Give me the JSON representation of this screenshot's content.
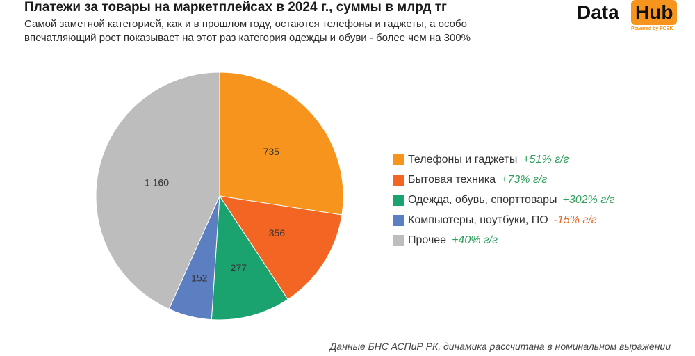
{
  "header": {
    "title": "Платежи за товары на маркетплейсах в 2024 г., суммы в млрд тг",
    "subtitle": "Самой заметной категорией, как и в прошлом году, остаются телефоны и гаджеты, а особо впечатляющий рост показывает на этот раз категория одежды и обуви - более чем на 300%"
  },
  "logo": {
    "data_text": "Data",
    "hub_text": "Hub",
    "powered_text": "Powered by FCBK"
  },
  "chart_data": {
    "type": "pie",
    "title": "Платежи за товары на маркетплейсах в 2024 г., суммы в млрд тг",
    "start": "12 o'clock, clockwise",
    "slices": [
      {
        "label": "Телефоны и гаджеты",
        "value": 735,
        "value_label": "735",
        "growth": "+51% г/г",
        "color": "#f7941d",
        "growth_color": "#2e9e5b"
      },
      {
        "label": "Бытовая техника",
        "value": 356,
        "value_label": "356",
        "growth": "+73% г/г",
        "color": "#f26522",
        "growth_color": "#2e9e5b"
      },
      {
        "label": "Одежда, обувь, спорттовары",
        "value": 277,
        "value_label": "277",
        "growth": "+302% г/г",
        "color": "#1aa36f",
        "growth_color": "#2e9e5b"
      },
      {
        "label": "Компьютеры, ноутбуки, ПО",
        "value": 152,
        "value_label": "152",
        "growth": "-15% г/г",
        "color": "#5b7fc0",
        "growth_color": "#e4692b"
      },
      {
        "label": "Прочее",
        "value": 1160,
        "value_label": "1 160",
        "growth": "+40% г/г",
        "color": "#bdbdbd",
        "growth_color": "#2e9e5b"
      }
    ],
    "legend": "right"
  },
  "footer": {
    "source": "Данные БНС АСПиР РК, динамика рассчитана в номинальном выражении"
  }
}
